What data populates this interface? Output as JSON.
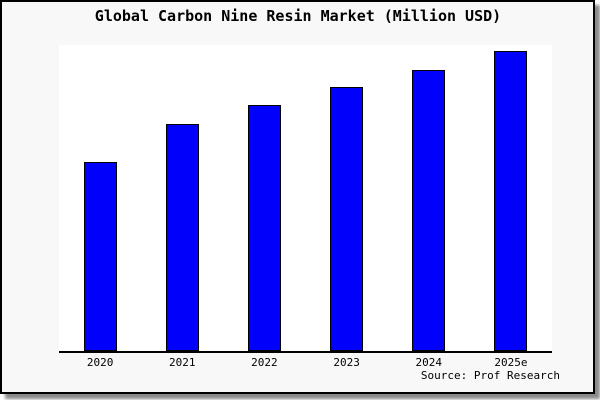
{
  "title": "Global Carbon Nine Resin Market (Million USD)",
  "source": "Source: Prof Research",
  "colors": {
    "bar_fill": "#0000FB",
    "bar_edge": "#000000",
    "figure_bg": "#f8f8f8",
    "plot_bg": "#ffffff",
    "axis_line": "#000000",
    "shadow": "#8a8a8a",
    "text": "#000000"
  },
  "chart_data": {
    "type": "bar",
    "title": "Global Carbon Nine Resin Market (Million USD)",
    "categories": [
      "2020",
      "2021",
      "2022",
      "2023",
      "2024",
      "2025e"
    ],
    "values": [
      100,
      120,
      130,
      140,
      149,
      159
    ],
    "xlabel": "",
    "ylabel": "",
    "ylim": [
      0,
      162
    ],
    "y_axis_visible": false,
    "grid": false,
    "legend_position": "none",
    "annotation": "Source: Prof Research"
  }
}
